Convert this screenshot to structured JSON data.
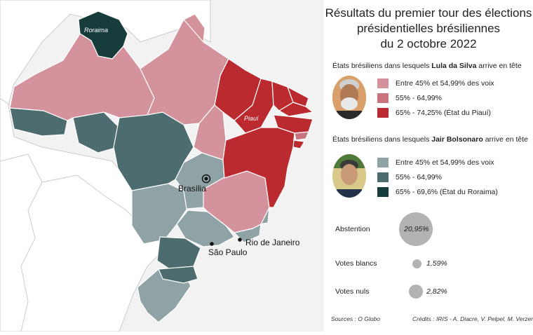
{
  "title_lines": [
    "Résultats du premier tour des élections",
    "présidentielles brésiliennes",
    "du 2 octobre 2022"
  ],
  "lula": {
    "heading_prefix": "États brésiliens dans lesquels ",
    "heading_name": "Lula da Silva",
    "heading_suffix": " arrive en tête",
    "legend": [
      {
        "label": "Entre 45% et 54,99% des voix",
        "color": "#d4939c"
      },
      {
        "label": "55% - 64,99%",
        "color": "#c9737e"
      },
      {
        "label": "65% - 74,25% (État du Piauí)",
        "color": "#bb2a2f"
      }
    ]
  },
  "bolsonaro": {
    "heading_prefix": "États brésiliens dans lesquels ",
    "heading_name": "Jair Bolsonaro",
    "heading_suffix": " arrive en tête",
    "legend": [
      {
        "label": "Entre 45% et 54,99% des voix",
        "color": "#8fa3a6"
      },
      {
        "label": "55% - 64,99%",
        "color": "#4d6c6f"
      },
      {
        "label": "65% - 69,6% (État du Roraima)",
        "color": "#163c3c"
      }
    ]
  },
  "stats": {
    "abstention": {
      "label": "Abstention",
      "value": "20,95%",
      "pct": 20.95
    },
    "blancs": {
      "label": "Votes blancs",
      "value": "1,59%",
      "pct": 1.59
    },
    "nuls": {
      "label": "Votes nuls",
      "value": "2,82%",
      "pct": 2.82
    }
  },
  "footer": {
    "sources": "Sources : O Globo",
    "credits": "Crédits : IRIS - A. Diacre, V. Pelpel, M. Verzeroli"
  },
  "map": {
    "state_labels": {
      "roraima": "Roraima",
      "piaui": "Piauí"
    },
    "cities": {
      "brasilia": "Brasília",
      "sao_paulo": "São Paulo",
      "rio": "Rio de Janeiro"
    },
    "colors": {
      "background": "#f2f2f3",
      "land": "#ffffff",
      "border": "#c9ccd0"
    }
  }
}
